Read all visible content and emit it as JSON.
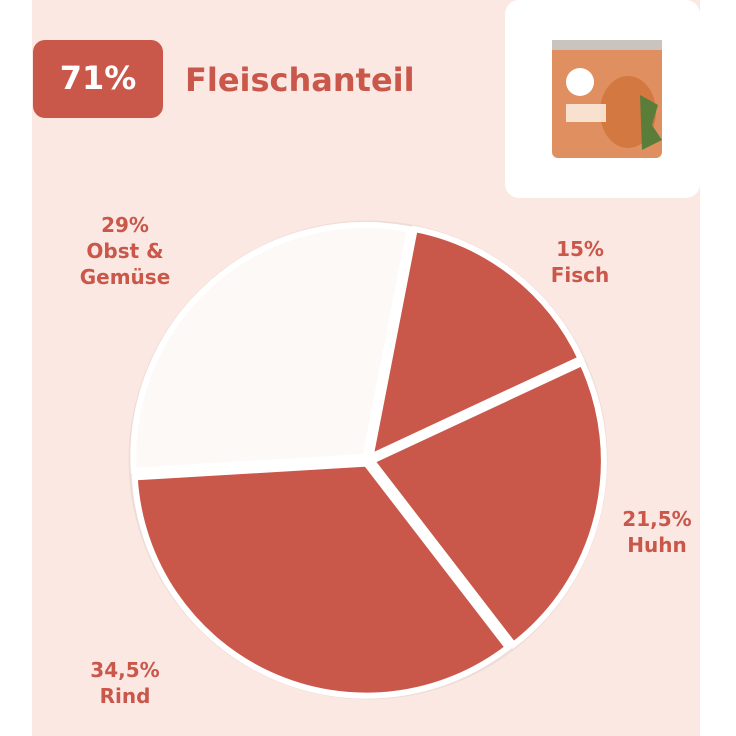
{
  "chart_data": {
    "type": "pie",
    "badge": "71%",
    "title": "Fleischanteil",
    "categories": [
      "Fisch",
      "Huhn",
      "Rind",
      "Obst & Gemüse"
    ],
    "values": [
      15,
      21.5,
      34.5,
      29
    ],
    "value_labels": [
      "15%",
      "21,5%",
      "34,5%",
      "29%"
    ],
    "colors": [
      "#c9574a",
      "#c9574a",
      "#c9574a",
      "#fdf9f7"
    ]
  }
}
